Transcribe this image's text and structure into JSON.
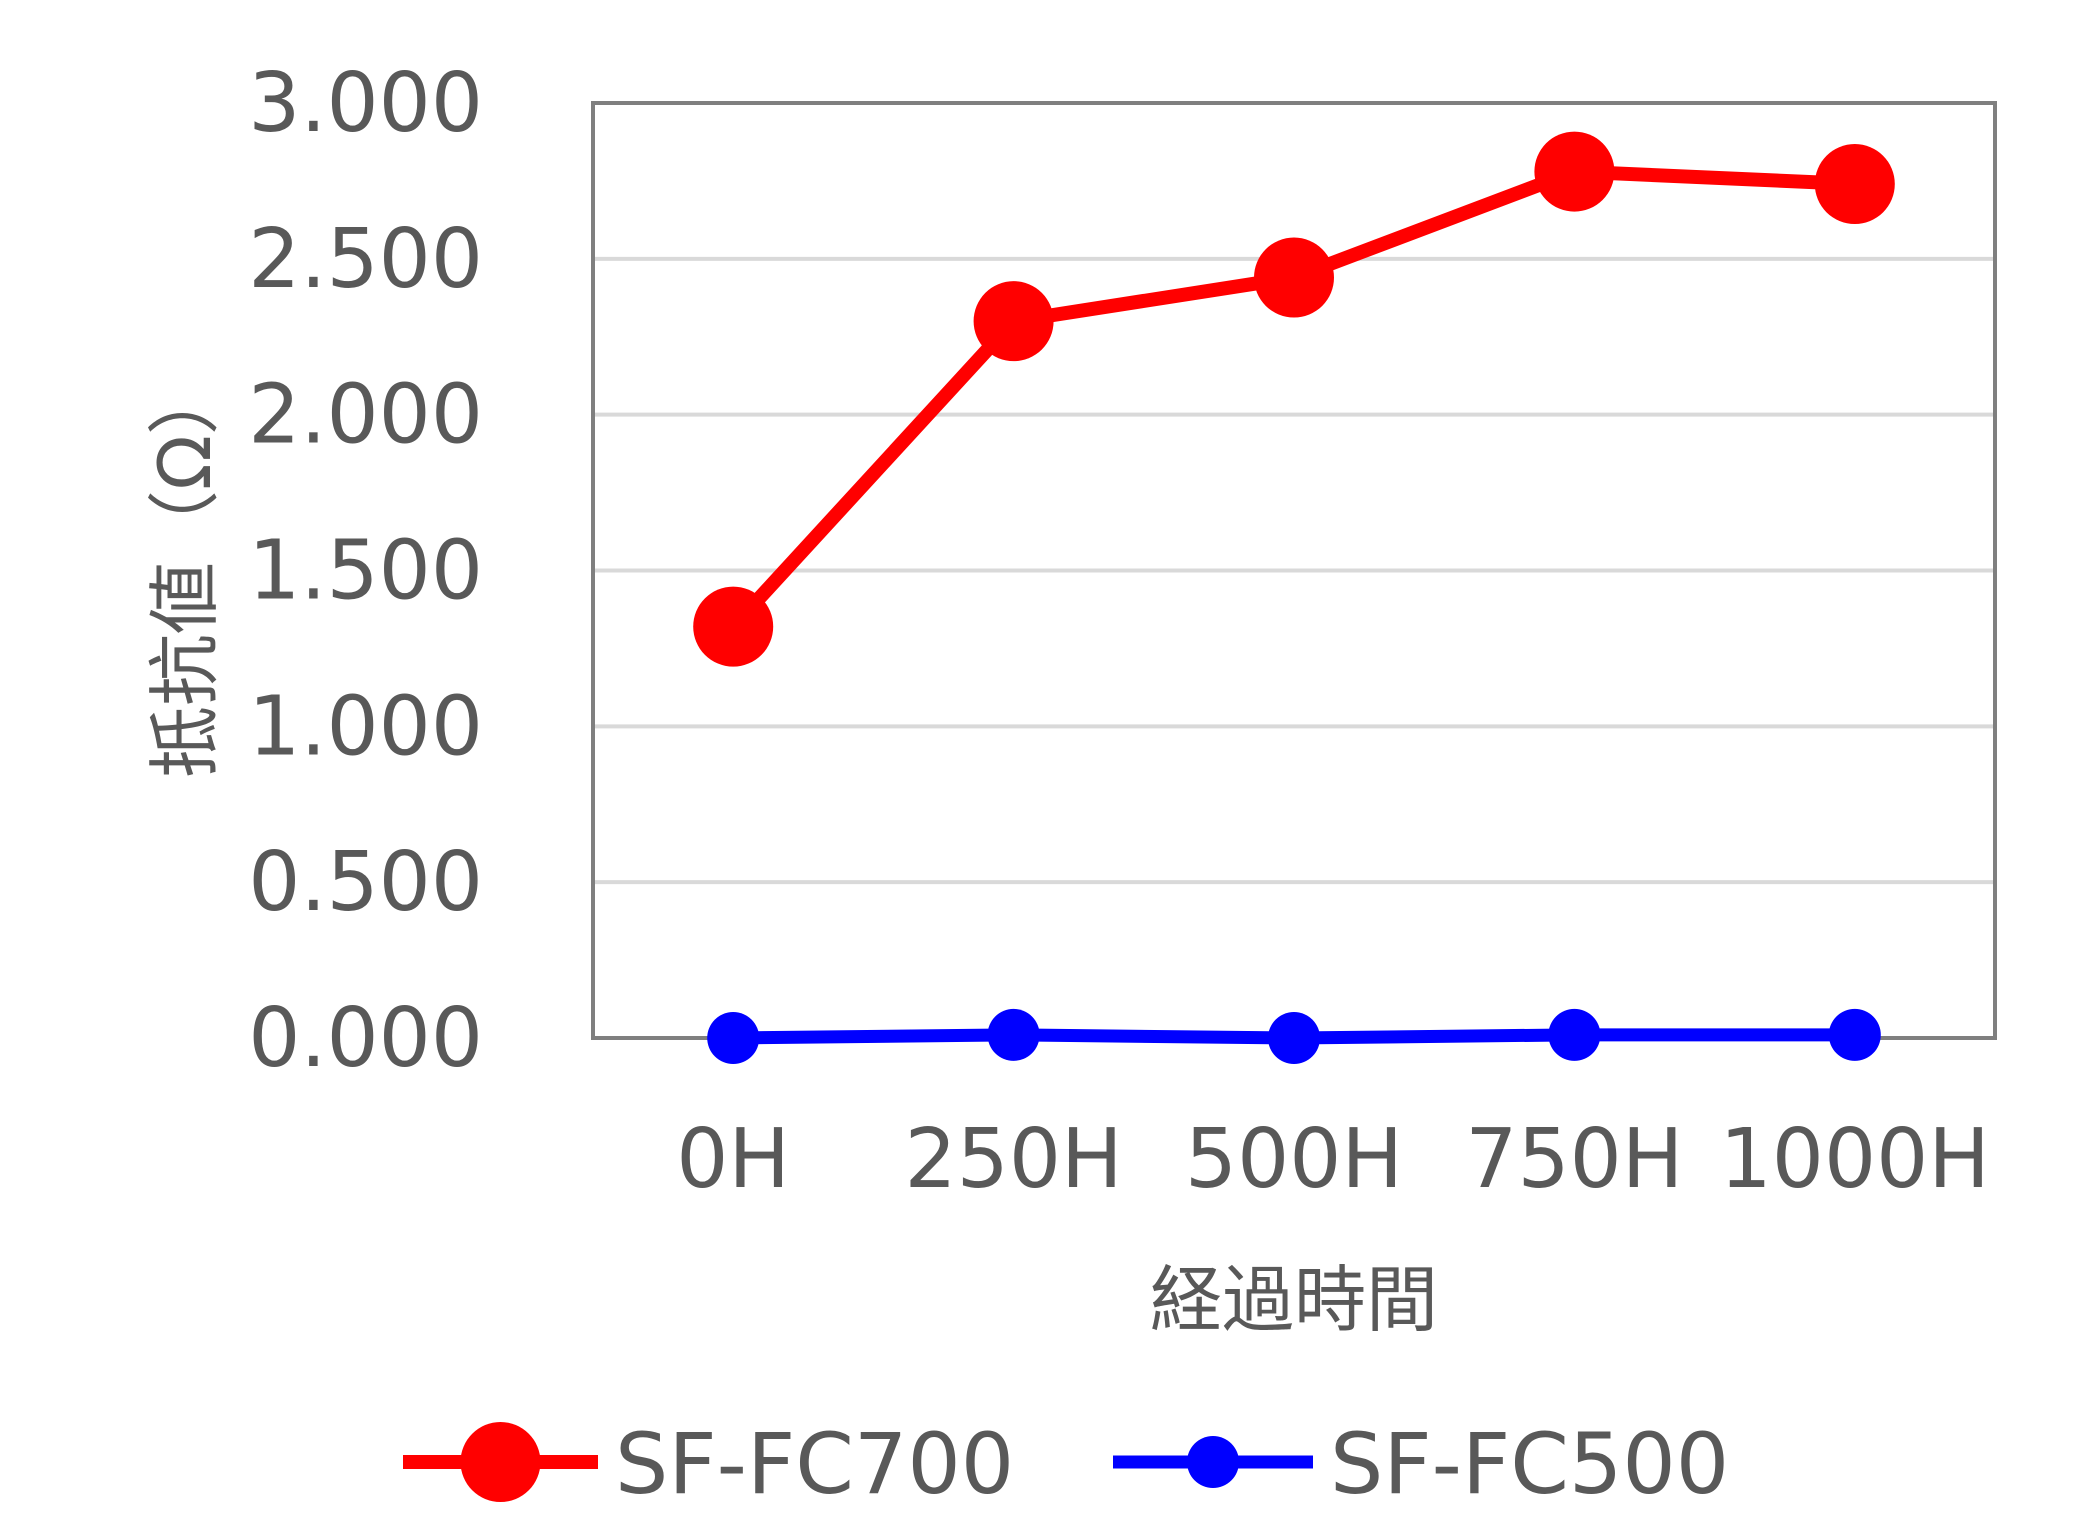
{
  "chart_data": {
    "type": "line",
    "title": "",
    "xlabel": "経過時間",
    "ylabel": "抵抗値（Ω）",
    "categories": [
      "0H",
      "250H",
      "500H",
      "750H",
      "1000H"
    ],
    "yticks": [
      "0.000",
      "0.500",
      "1.000",
      "1.500",
      "2.000",
      "2.500",
      "3.000"
    ],
    "ylim": [
      0,
      3
    ],
    "grid": true,
    "legend_position": "bottom",
    "series": [
      {
        "name": "SF-FC700",
        "color": "#ff0000",
        "values": [
          1.32,
          2.3,
          2.44,
          2.78,
          2.74
        ]
      },
      {
        "name": "SF-FC500",
        "color": "#0000ff",
        "values": [
          0.0,
          0.01,
          0.0,
          0.01,
          0.01
        ]
      }
    ]
  }
}
